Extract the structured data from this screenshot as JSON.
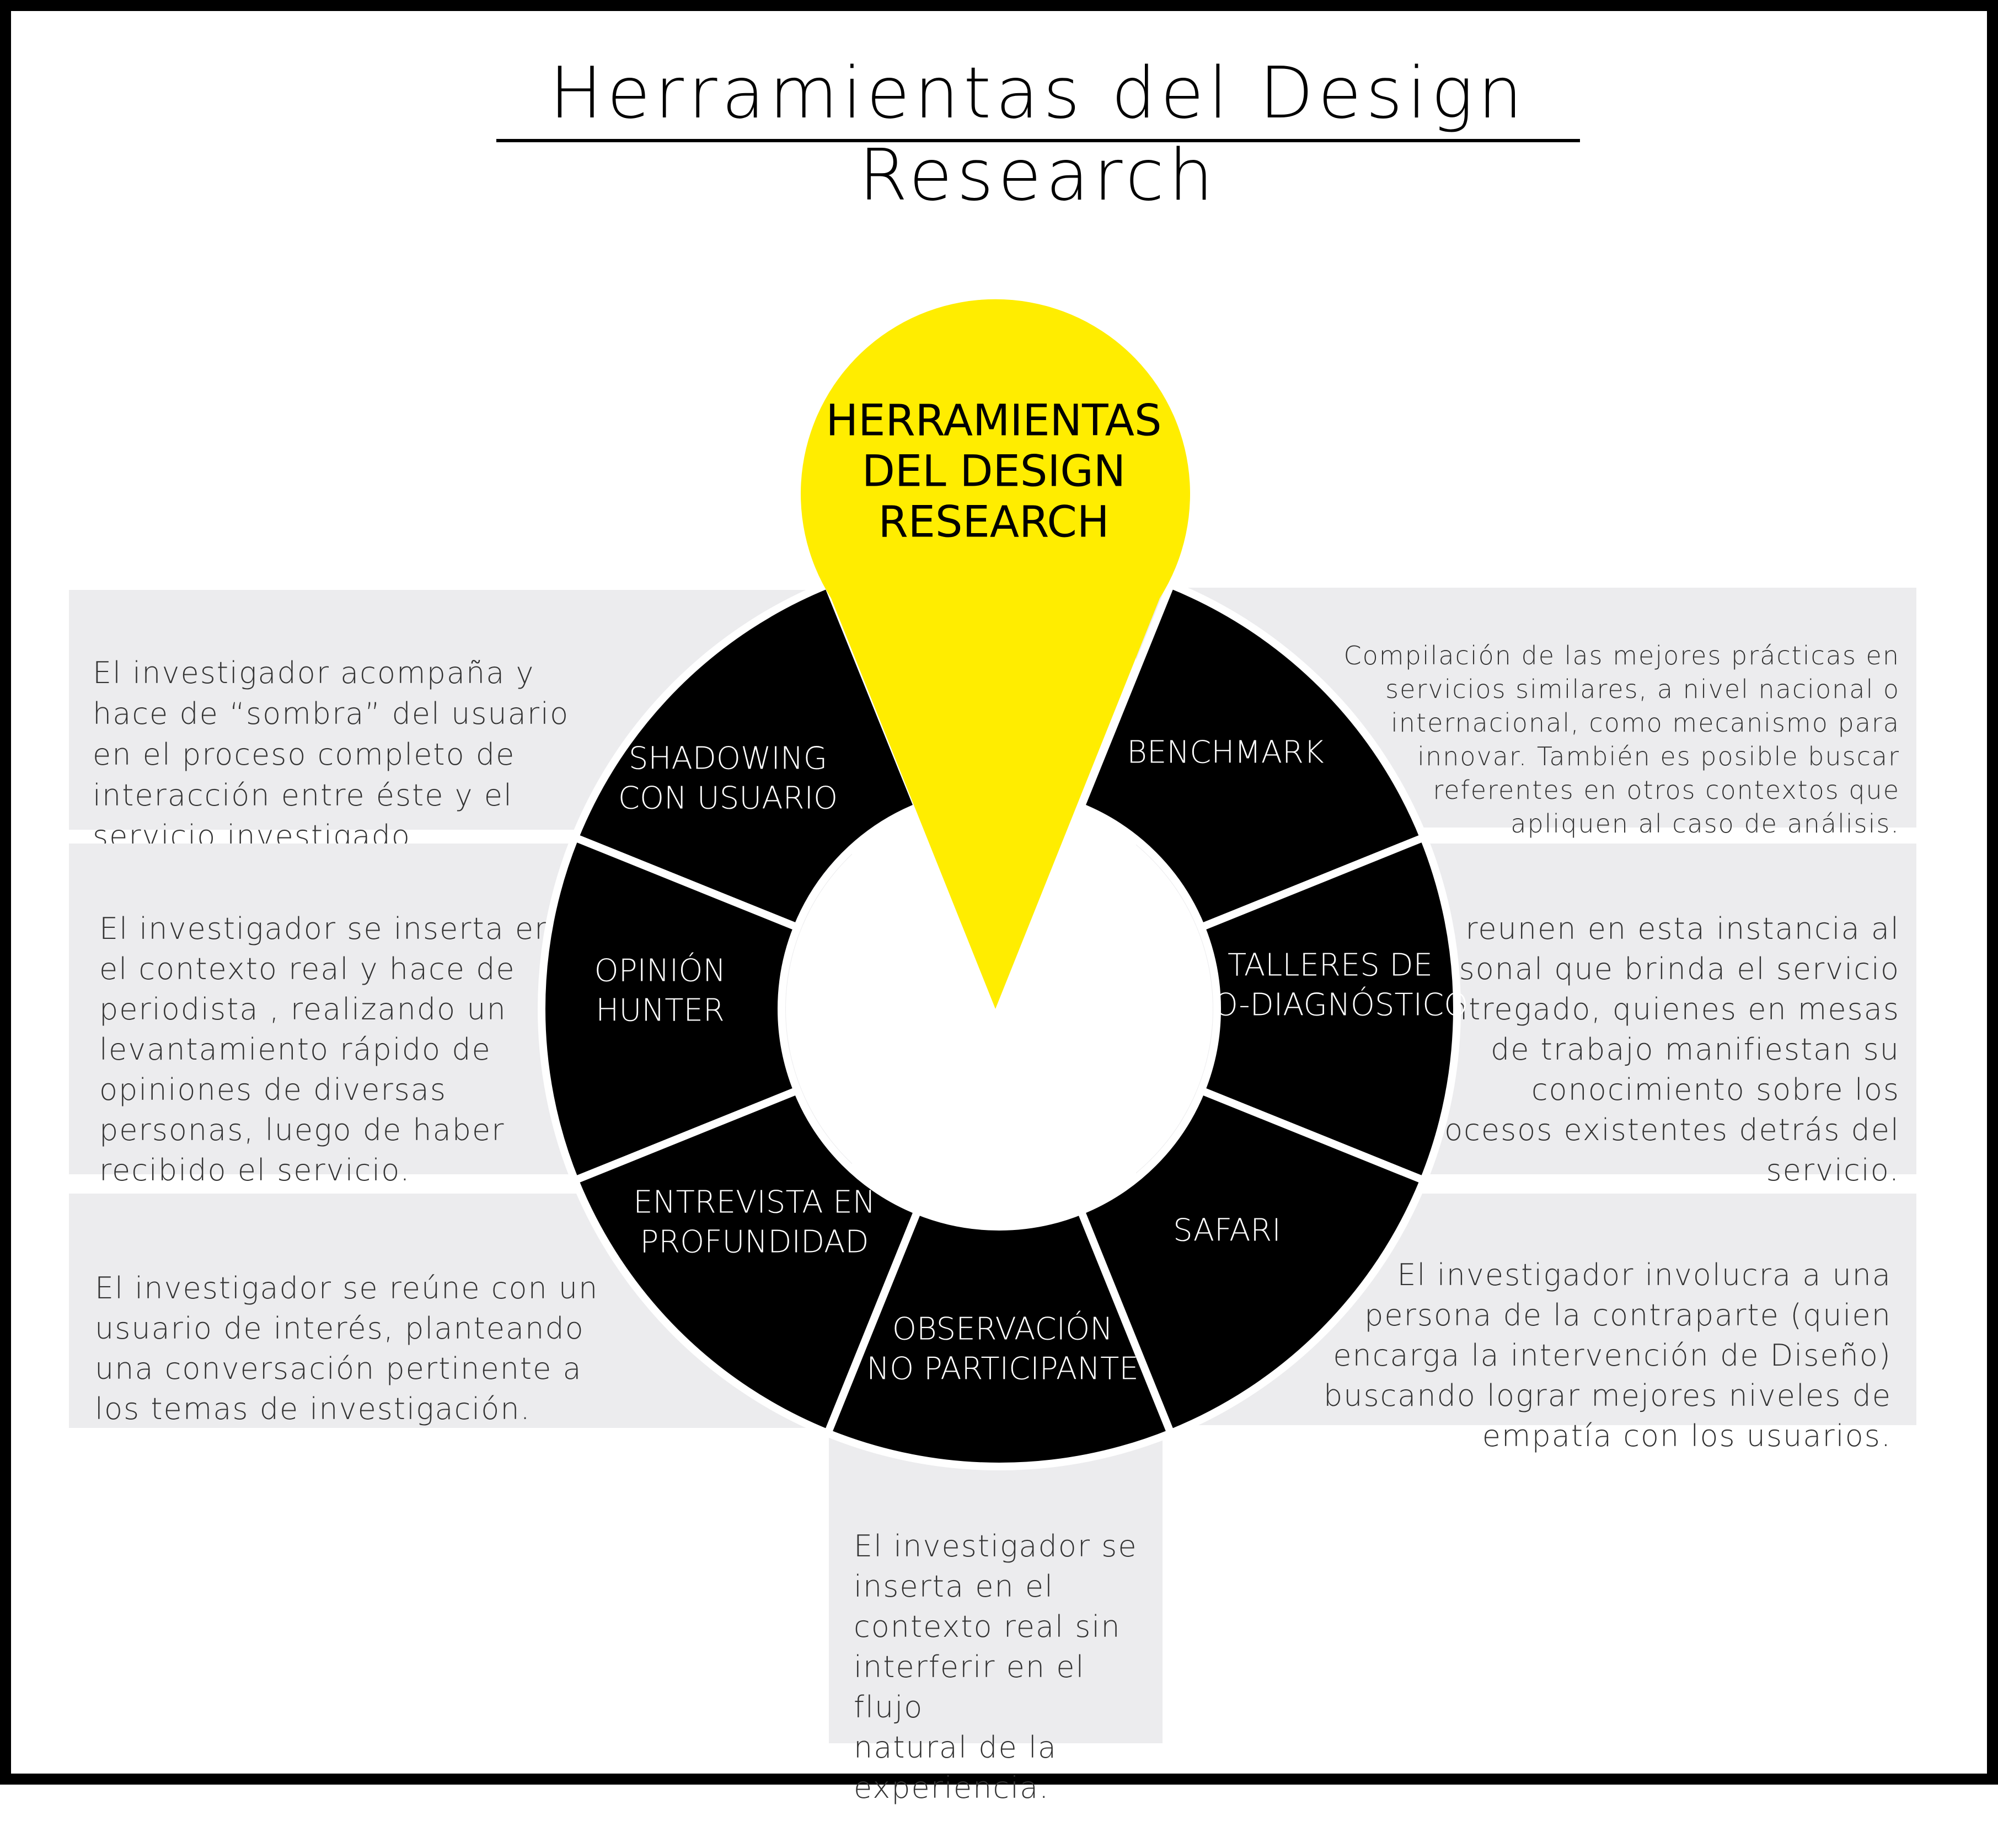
{
  "title": "Herramientas del Design Research",
  "colors": {
    "segment": "#000000",
    "pin": "#ffed00",
    "box": "#ececee",
    "separator": "#ffffff"
  },
  "center": {
    "lines": [
      "HERRAMIENTAS",
      "DEL DESIGN",
      "RESEARCH"
    ]
  },
  "segments": [
    {
      "lines": [
        "SHADOWING",
        "CON USUARIO"
      ]
    },
    {
      "lines": [
        "BENCHMARK"
      ]
    },
    {
      "lines": [
        "OPINIÓN",
        "HUNTER"
      ]
    },
    {
      "lines": [
        "TALLERES DE",
        "CO-DIAGNÓSTICO"
      ]
    },
    {
      "lines": [
        "ENTREVISTA EN",
        "PROFUNDIDAD"
      ]
    },
    {
      "lines": [
        "SAFARI"
      ]
    },
    {
      "lines": [
        "OBSERVACIÓN",
        "NO PARTICIPANTE"
      ]
    }
  ],
  "descriptions": {
    "shadowing": "El investigador acompaña y\nhace de “sombra” del usuario\nen el proceso completo de\ninteracción entre éste y el\nservicio investigado",
    "opinion": "El investigador se inserta en\nel contexto real y hace de\nperiodista , realizando un\nlevantamiento rápido de\nopiniones de diversas\npersonas, luego de haber\nrecibido el servicio.",
    "entrevista": "El investigador se reúne con un\nusuario de interés, planteando\nuna conversación pertinente a\nlos temas de investigación.",
    "benchmark": "Compilación de las mejores prácticas en\nservicios similares, a nivel nacional o\ninternacional, como mecanismo para\ninnovar. También es posible buscar\nreferentes en otros contextos que\napliquen al caso de análisis.",
    "talleres": "Se reunen en esta instancia al\npersonal que brinda el servicio\nentregado, quienes en mesas\nde trabajo manifiestan su\nconocimiento sobre los\nprocesos existentes detrás del\nservicio.",
    "safari": "El investigador involucra a una\npersona de la contraparte (quien\nencarga la intervención de Diseño)\nbuscando lograr mejores niveles de\nempatía con los usuarios.",
    "observacion": "El investigador se\ninserta en el\ncontexto real sin\ninterferir en el flujo\nnatural de la\nexperiencia."
  }
}
